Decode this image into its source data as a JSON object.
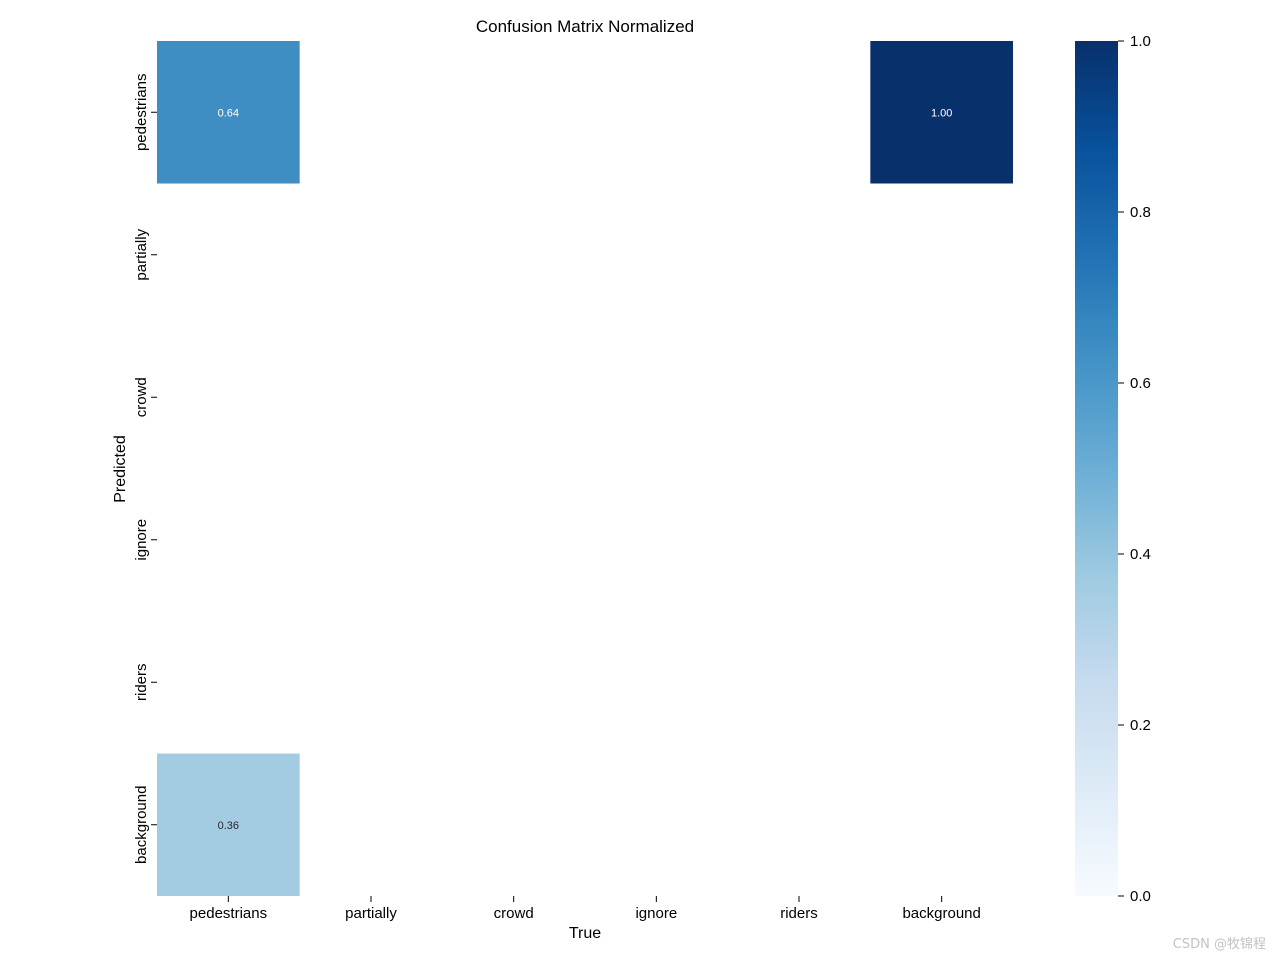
{
  "chart_data": {
    "type": "heatmap",
    "title": "Confusion Matrix Normalized",
    "xlabel": "True",
    "ylabel": "Predicted",
    "x_categories": [
      "pedestrians",
      "partially",
      "crowd",
      "ignore",
      "riders",
      "background"
    ],
    "y_categories": [
      "pedestrians",
      "partially",
      "crowd",
      "ignore",
      "riders",
      "background"
    ],
    "matrix": [
      [
        0.64,
        null,
        null,
        null,
        null,
        1.0
      ],
      [
        null,
        null,
        null,
        null,
        null,
        null
      ],
      [
        null,
        null,
        null,
        null,
        null,
        null
      ],
      [
        null,
        null,
        null,
        null,
        null,
        null
      ],
      [
        null,
        null,
        null,
        null,
        null,
        null
      ],
      [
        0.36,
        null,
        null,
        null,
        null,
        null
      ]
    ],
    "colorbar": {
      "range": [
        0.0,
        1.0
      ],
      "ticks": [
        0.0,
        0.2,
        0.4,
        0.6,
        0.8,
        1.0
      ],
      "tick_labels": [
        "0.0",
        "0.2",
        "0.4",
        "0.6",
        "0.8",
        "1.0"
      ],
      "colormap": "Blues"
    }
  },
  "watermark": "CSDN @牧锦程"
}
